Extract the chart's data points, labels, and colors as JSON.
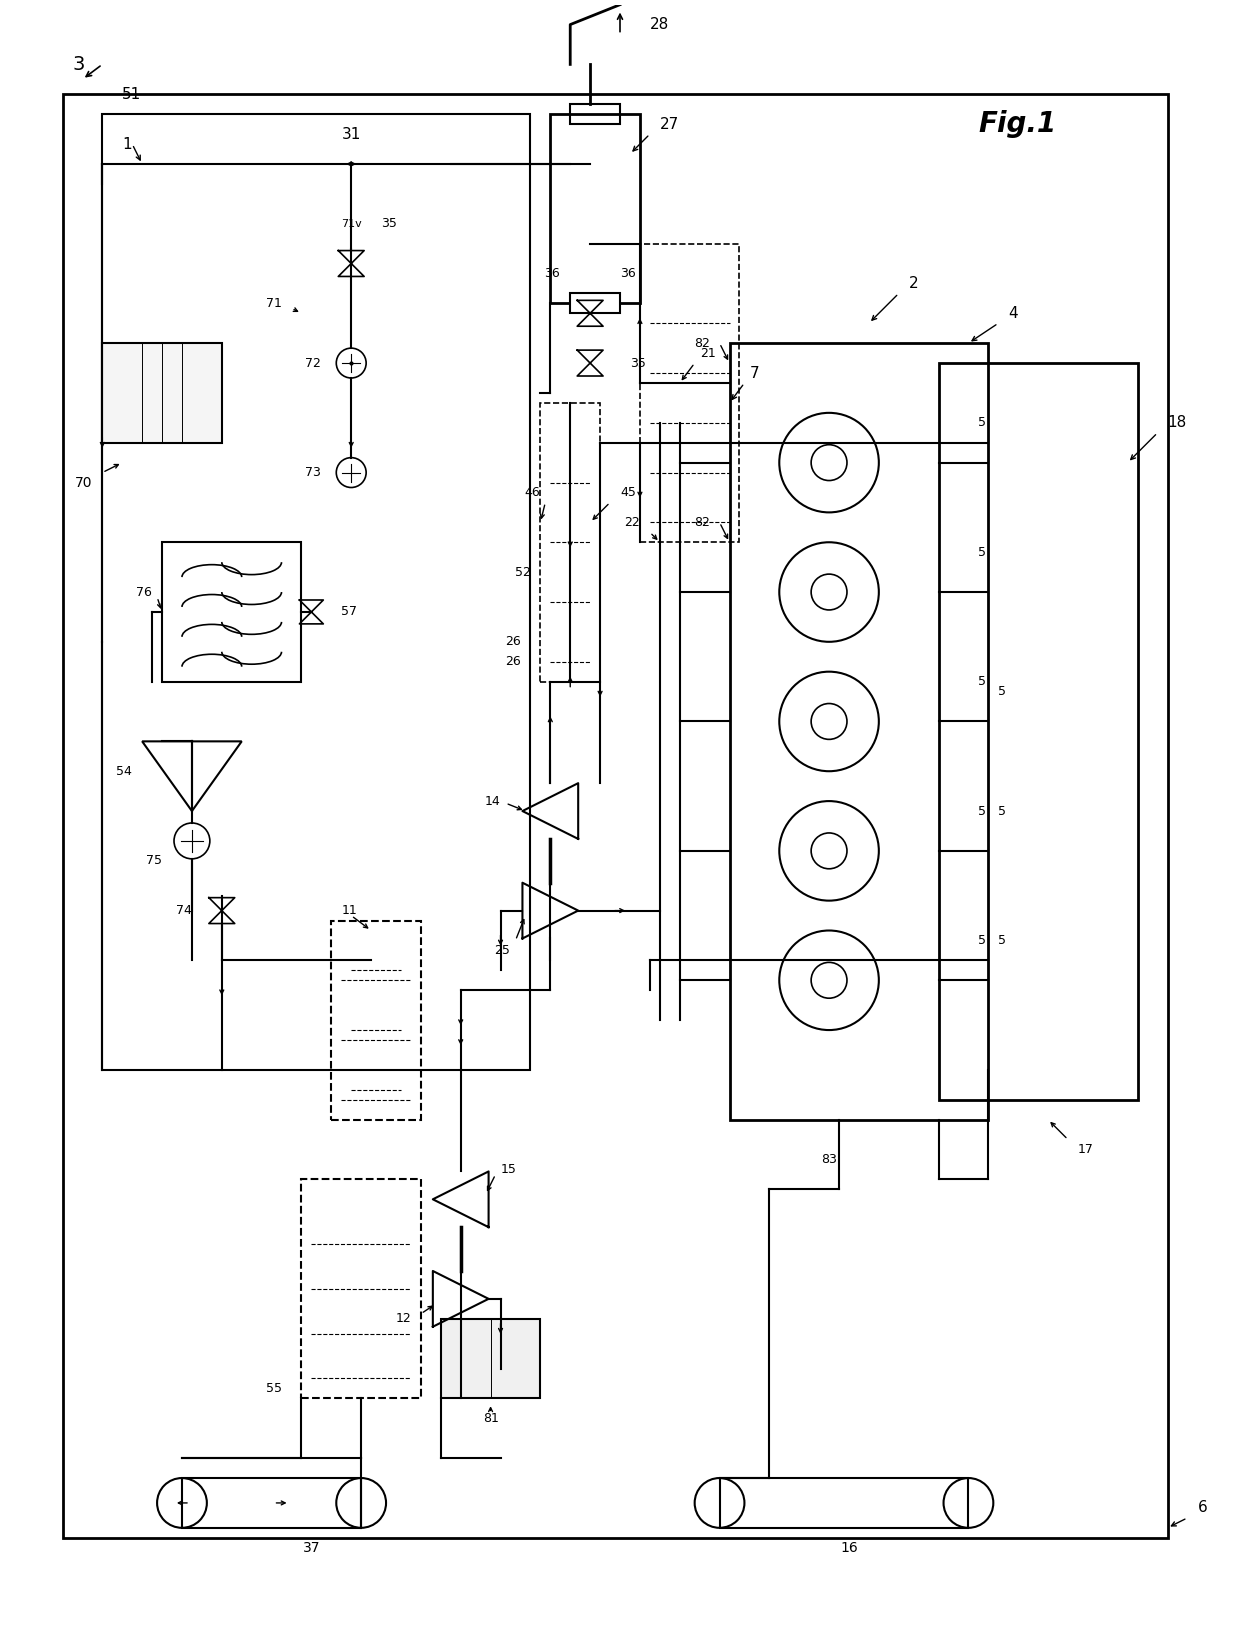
{
  "title": "Fig.1",
  "fig_label": "3",
  "background_color": "#ffffff",
  "line_color": "#000000",
  "fig_width": 12.4,
  "fig_height": 16.42,
  "dpi": 100
}
